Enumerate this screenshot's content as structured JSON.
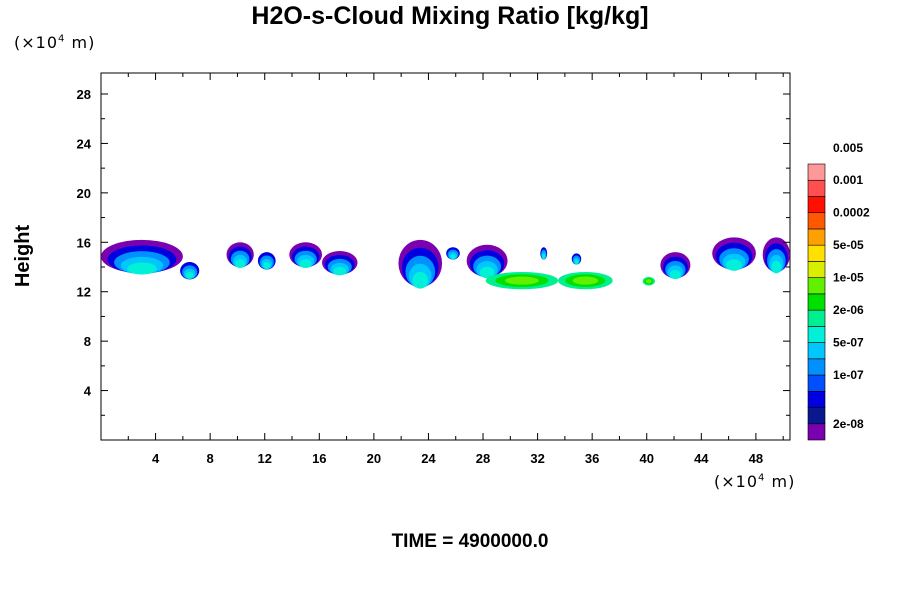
{
  "title": "H2O-s-Cloud Mixing Ratio [kg/kg]",
  "y_unit": {
    "prefix": "(×10",
    "exp": "4",
    "suffix": " m)"
  },
  "x_unit": {
    "prefix": "(×10",
    "exp": "4",
    "suffix": " m)"
  },
  "ylabel": "Height",
  "time_label": "TIME = 4900000.0",
  "chart_data": {
    "type": "heatmap",
    "title": "H2O-s-Cloud Mixing Ratio [kg/kg]",
    "xlabel": "",
    "ylabel": "Height",
    "x_unit": "×10^4 m",
    "y_unit": "×10^4 m",
    "xlim": [
      0,
      50.5
    ],
    "ylim": [
      0,
      29.7
    ],
    "x_ticks": [
      4,
      8,
      12,
      16,
      20,
      24,
      28,
      32,
      36,
      40,
      44,
      48
    ],
    "y_ticks": [
      4,
      8,
      12,
      16,
      20,
      24,
      28
    ],
    "grid": false,
    "colorbar": {
      "colors": [
        "#7a00b0",
        "#0a1890",
        "#0000e0",
        "#0050ff",
        "#0090ff",
        "#00c8ff",
        "#00f0d8",
        "#00f090",
        "#00e000",
        "#60f000",
        "#d8f000",
        "#ffe000",
        "#ffa000",
        "#ff5800",
        "#ff1000",
        "#ff5050",
        "#ff9898"
      ],
      "labels": [
        "2e-08",
        "1e-07",
        "5e-07",
        "2e-06",
        "1e-05",
        "5e-05",
        "0.0002",
        "0.001",
        "0.005"
      ],
      "label_band_index": [
        1,
        4,
        6,
        8,
        10,
        12,
        14,
        16,
        18
      ]
    },
    "cloud_blobs": [
      {
        "x": [
          0,
          6
        ],
        "y": [
          13.5,
          16.2
        ],
        "level": "top"
      },
      {
        "x": [
          5.8,
          7.2
        ],
        "y": [
          13.0,
          14.4
        ],
        "level": "mid"
      },
      {
        "x": [
          9.2,
          11.2
        ],
        "y": [
          14.0,
          16.0
        ],
        "level": "top"
      },
      {
        "x": [
          11.5,
          12.8
        ],
        "y": [
          13.8,
          15.2
        ],
        "level": "mid"
      },
      {
        "x": [
          13.8,
          16.2
        ],
        "y": [
          14.0,
          16.0
        ],
        "level": "top"
      },
      {
        "x": [
          16.2,
          18.8
        ],
        "y": [
          13.4,
          15.3
        ],
        "level": "top"
      },
      {
        "x": [
          21.8,
          25.0
        ],
        "y": [
          12.4,
          16.2
        ],
        "level": "top"
      },
      {
        "x": [
          25.3,
          26.3
        ],
        "y": [
          14.6,
          15.6
        ],
        "level": "mid"
      },
      {
        "x": [
          26.8,
          29.8
        ],
        "y": [
          13.2,
          15.8
        ],
        "level": "top"
      },
      {
        "x": [
          28.2,
          33.5
        ],
        "y": [
          12.2,
          13.6
        ],
        "level": "low"
      },
      {
        "x": [
          32.2,
          32.7
        ],
        "y": [
          14.6,
          15.6
        ],
        "level": "mid"
      },
      {
        "x": [
          33.5,
          37.5
        ],
        "y": [
          12.2,
          13.6
        ],
        "level": "low"
      },
      {
        "x": [
          34.5,
          35.2
        ],
        "y": [
          14.2,
          15.1
        ],
        "level": "mid"
      },
      {
        "x": [
          39.7,
          40.6
        ],
        "y": [
          12.5,
          13.2
        ],
        "level": "low"
      },
      {
        "x": [
          41.0,
          43.2
        ],
        "y": [
          13.1,
          15.2
        ],
        "level": "top"
      },
      {
        "x": [
          44.8,
          48.0
        ],
        "y": [
          13.8,
          16.4
        ],
        "level": "top"
      },
      {
        "x": [
          48.5,
          50.5
        ],
        "y": [
          13.6,
          16.4
        ],
        "level": "top"
      }
    ]
  }
}
